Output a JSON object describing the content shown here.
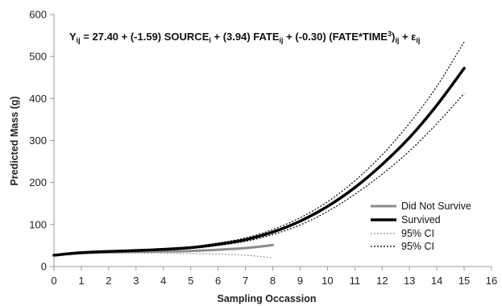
{
  "chart_data": {
    "type": "line",
    "xlabel": "Sampling Occassion",
    "ylabel": "Predicted Mass (g)",
    "xlim": [
      0,
      16
    ],
    "ylim": [
      0,
      600
    ],
    "x_ticks": [
      "0",
      "1",
      "2",
      "3",
      "4",
      "5",
      "6",
      "7",
      "8",
      "9",
      "10",
      "11",
      "12",
      "13",
      "14",
      "15",
      "16"
    ],
    "y_ticks": [
      "0",
      "100",
      "200",
      "300",
      "400",
      "500",
      "600"
    ],
    "grid": false,
    "legend_position": "right",
    "equation": {
      "p1": "Y",
      "s1": "ij",
      "p2": " = 27.40 + (-1.59) SOURCE",
      "s2": "i",
      "p3": " + (3.94) FATE",
      "s3": "ij",
      "p4": " + (-0.30) (FATE*TIME",
      "s4": "3",
      "p5": ")",
      "s5": "ij",
      "p6": " + ε",
      "s6": "ij"
    },
    "series": [
      {
        "name": "Did Not Survive",
        "color": "#8c8c8c",
        "style": "solid",
        "x": [
          0,
          1,
          2,
          3,
          4,
          5,
          6,
          7,
          8
        ],
        "y": [
          27,
          32,
          34,
          35,
          36,
          37,
          40,
          44,
          51
        ]
      },
      {
        "name": "Survived",
        "color": "#000000",
        "style": "solid-thick",
        "x": [
          0,
          1,
          2,
          3,
          4,
          5,
          6,
          7,
          8,
          9,
          10,
          11,
          12,
          13,
          14,
          15
        ],
        "y": [
          27,
          33,
          36,
          38,
          41,
          45,
          53,
          64,
          82,
          108,
          143,
          188,
          243,
          307,
          384,
          472
        ]
      },
      {
        "name": "95% CI",
        "color": "#9a9a9a",
        "style": "dotted",
        "x": [
          0,
          1,
          2,
          3,
          4,
          5,
          6,
          7,
          8
        ],
        "y": [
          26,
          30,
          32,
          32,
          32,
          31,
          30,
          27,
          21
        ]
      },
      {
        "name": "95% CI",
        "color": "#000000",
        "style": "dotted",
        "x": [
          0,
          1,
          2,
          3,
          4,
          5,
          6,
          7,
          8,
          9,
          10,
          11,
          12,
          13,
          14,
          15
        ],
        "y": [
          28,
          34,
          37,
          39,
          42,
          47,
          56,
          68,
          88,
          116,
          154,
          204,
          266,
          341,
          429,
          535
        ]
      },
      {
        "name": "",
        "color": "#000000",
        "style": "dotted",
        "x": [
          0,
          1,
          2,
          3,
          4,
          5,
          6,
          7,
          8,
          9,
          10,
          11,
          12,
          13,
          14,
          15
        ],
        "y": [
          26,
          31,
          34,
          36,
          39,
          43,
          50,
          60,
          76,
          99,
          131,
          172,
          220,
          275,
          340,
          412
        ]
      }
    ]
  }
}
